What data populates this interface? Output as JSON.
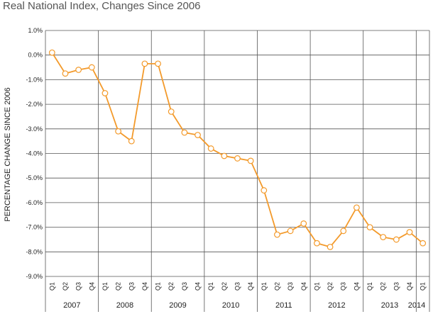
{
  "chart_data": {
    "type": "line",
    "title": "Real National Index, Changes Since 2006",
    "xlabel": "",
    "ylabel": "PERCENTAGE CHANGE SINCE 2006",
    "ylim": [
      -9,
      1
    ],
    "yticks": [
      "1.0%",
      "0.0%",
      "-1.0%",
      "-2.0%",
      "-3.0%",
      "-4.0%",
      "-5.0%",
      "-6.0%",
      "-7.0%",
      "-8.0%",
      "-9.0%"
    ],
    "ytick_values": [
      1,
      0,
      -1,
      -2,
      -3,
      -4,
      -5,
      -6,
      -7,
      -8,
      -9
    ],
    "grid": true,
    "line_color": "#f39a2b",
    "marker_fill": "#ffffff",
    "grid_color": "#555555",
    "years": [
      {
        "label": "2007",
        "quarters": [
          "Q1",
          "Q2",
          "Q3",
          "Q4"
        ]
      },
      {
        "label": "2008",
        "quarters": [
          "Q1",
          "Q2",
          "Q3",
          "Q4"
        ]
      },
      {
        "label": "2009",
        "quarters": [
          "Q1",
          "Q2",
          "Q3",
          "Q4"
        ]
      },
      {
        "label": "2010",
        "quarters": [
          "Q1",
          "Q2",
          "Q3",
          "Q4"
        ]
      },
      {
        "label": "2011",
        "quarters": [
          "Q1",
          "Q2",
          "Q3",
          "Q4"
        ]
      },
      {
        "label": "2012",
        "quarters": [
          "Q1",
          "Q2",
          "Q3",
          "Q4"
        ]
      },
      {
        "label": "2013",
        "quarters": [
          "Q1",
          "Q2",
          "Q3",
          "Q4"
        ]
      },
      {
        "label": "2014",
        "quarters": [
          "Q1"
        ]
      }
    ],
    "series": [
      {
        "name": "Real National Index",
        "values": [
          0.1,
          -0.75,
          -0.6,
          -0.5,
          -1.55,
          -3.1,
          -3.5,
          -0.35,
          -0.35,
          -2.3,
          -3.15,
          -3.25,
          -3.8,
          -4.1,
          -4.2,
          -4.3,
          -5.5,
          -7.3,
          -7.15,
          -6.85,
          -7.65,
          -7.8,
          -7.15,
          -6.2,
          -7.0,
          -7.4,
          -7.5,
          -7.2,
          -7.65
        ]
      }
    ]
  }
}
